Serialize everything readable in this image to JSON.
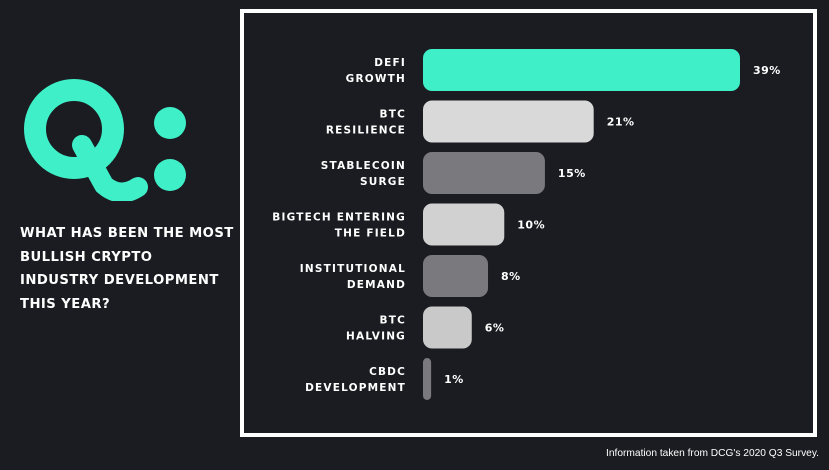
{
  "logo": {
    "text": "Q:",
    "color": "#3eefc8"
  },
  "question": "WHAT HAS BEEN THE MOST BULLISH CRYPTO INDUSTRY DEVELOPMENT THIS YEAR?",
  "source": "Information taken from DCG's 2020 Q3 Survey.",
  "chart_data": {
    "type": "bar",
    "orientation": "horizontal",
    "categories": [
      [
        "DEFI",
        "GROWTH"
      ],
      [
        "BTC",
        "RESILIENCE"
      ],
      [
        "STABLECOIN",
        "SURGE"
      ],
      [
        "BIGTECH ENTERING",
        "THE FIELD"
      ],
      [
        "INSTITUTIONAL",
        "DEMAND"
      ],
      [
        "BTC",
        "HALVING"
      ],
      [
        "CBDC",
        "DEVELOPMENT"
      ]
    ],
    "values": [
      39,
      21,
      15,
      10,
      8,
      6,
      1
    ],
    "value_labels": [
      "39%",
      "21%",
      "15%",
      "10%",
      "8%",
      "6%",
      "1%"
    ],
    "bar_colors": [
      "#3eefc8",
      "#d9d9d9",
      "#7a797d",
      "#d1d1d1",
      "#7a797d",
      "#c9c9c9",
      "#7a797d"
    ],
    "title": "",
    "xlabel": "",
    "ylabel": "",
    "xlim": [
      0,
      39
    ],
    "grid": false,
    "legend": "none"
  }
}
